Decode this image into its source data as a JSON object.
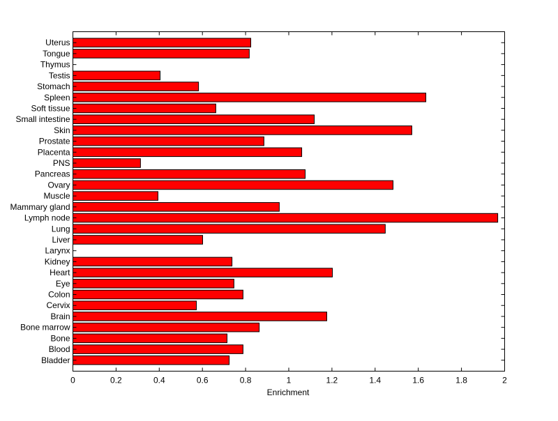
{
  "chart_data": {
    "type": "bar",
    "orientation": "horizontal",
    "title": "",
    "xlabel": "Enrichment",
    "ylabel": "",
    "xlim": [
      0,
      2
    ],
    "xticks": [
      0,
      0.2,
      0.4,
      0.6,
      0.8,
      1,
      1.2,
      1.4,
      1.6,
      1.8,
      2
    ],
    "xtick_labels": [
      "0",
      "0.2",
      "0.4",
      "0.6",
      "0.8",
      "1",
      "1.2",
      "1.4",
      "1.6",
      "1.8",
      "2"
    ],
    "grid": false,
    "bar_color": "#ff0000",
    "categories": [
      "Bladder",
      "Blood",
      "Bone",
      "Bone marrow",
      "Brain",
      "Cervix",
      "Colon",
      "Eye",
      "Heart",
      "Kidney",
      "Larynx",
      "Liver",
      "Lung",
      "Lymph node",
      "Mammary gland",
      "Muscle",
      "Ovary",
      "Pancreas",
      "PNS",
      "Placenta",
      "Prostate",
      "Skin",
      "Small intestine",
      "Soft tissue",
      "Spleen",
      "Stomach",
      "Testis",
      "Thymus",
      "Tongue",
      "Uterus"
    ],
    "values": [
      0.724,
      0.788,
      0.714,
      0.863,
      1.176,
      0.572,
      0.788,
      0.746,
      1.202,
      0.737,
      0,
      0.601,
      1.447,
      1.968,
      0.956,
      0.394,
      1.483,
      1.076,
      0.313,
      1.06,
      0.885,
      1.57,
      1.118,
      0.662,
      1.635,
      0.582,
      0.404,
      0,
      0.817,
      0.824
    ]
  }
}
